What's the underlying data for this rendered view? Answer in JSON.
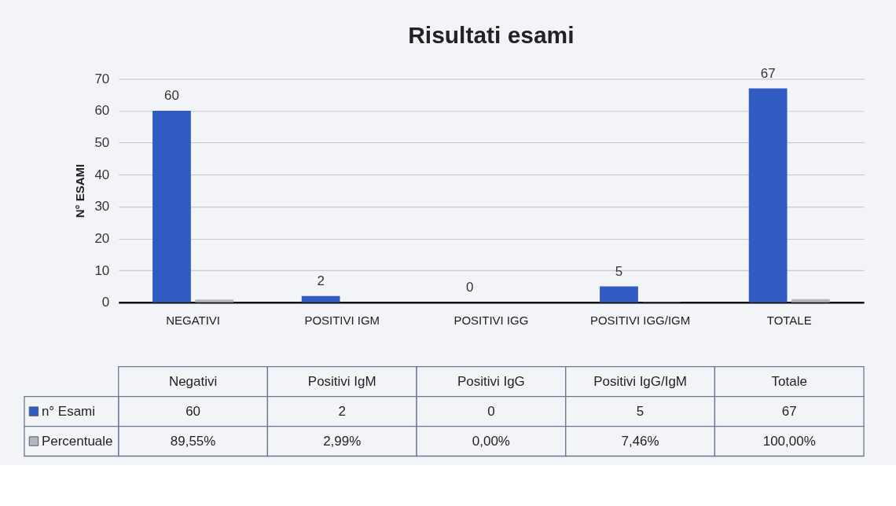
{
  "chart_data": {
    "type": "bar",
    "title": "Risultati esami",
    "ylabel": "N° ESAMI",
    "categories": [
      "NEGATIVI",
      "POSITIVI IGM",
      "POSITIVI IGG",
      "POSITIVI IGG/IGM",
      "TOTALE"
    ],
    "series": [
      {
        "name": "n° Esami",
        "color": "#2f5bc2",
        "values": [
          60,
          2,
          0,
          5,
          67
        ]
      },
      {
        "name": "Percentuale",
        "color": "#b4b5be",
        "values": [
          0.8955,
          0.0299,
          0,
          0.0746,
          1
        ],
        "value_labels": [
          "89,55%",
          "2,99%",
          "0,00%",
          "7,46%",
          "100,00%"
        ]
      }
    ],
    "ylim": [
      0,
      70
    ],
    "yticks": [
      0,
      10,
      20,
      30,
      40,
      50,
      60,
      70
    ],
    "grid": "y",
    "legend": "bottom",
    "data_labels": true,
    "annotations": [
      {
        "text": "60",
        "x": "NEGATIVI",
        "y": 60
      },
      {
        "text": "2",
        "x": "POSITIVI IGM",
        "y": 2
      },
      {
        "text": "0",
        "x": "POSITIVI IGG",
        "y": 0
      },
      {
        "text": "5",
        "x": "POSITIVI IGG/IGM",
        "y": 5
      },
      {
        "text": "67",
        "x": "TOTALE",
        "y": 67
      },
      "Negativi",
      "Positivi IgM",
      "Positivi IgG",
      "Positivi IgG/IgM",
      "Totale"
    ]
  }
}
